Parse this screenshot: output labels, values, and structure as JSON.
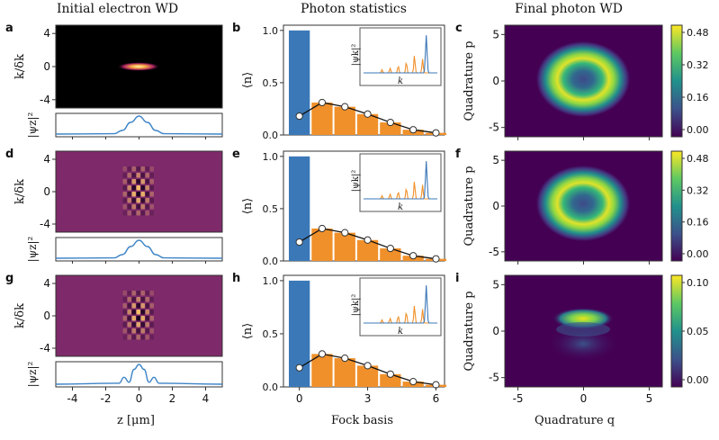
{
  "column_titles": [
    "Initial electron WD",
    "Photon statistics",
    "Final photon WD"
  ],
  "panel_labels": [
    "a",
    "b",
    "c",
    "d",
    "e",
    "f",
    "g",
    "h",
    "i"
  ],
  "x_labels": {
    "left": "z [μm]",
    "middle": "Fock basis",
    "right": "Quadrature q"
  },
  "y_labels": {
    "left_top": "k/δk",
    "left_bottom": "|ψz|²",
    "middle": "⟨n⟩",
    "middle_inset": "|ψk|²",
    "middle_inset_x": "k",
    "right": "Quadrature p"
  },
  "colors": {
    "blue": "#3b78b8",
    "orange": "#f0902a",
    "wave": "#3d84c6",
    "black_bg": "#000000",
    "magma_mid": "#7e2a6a",
    "viridis_dark": "#440154"
  },
  "chart_data": [
    {
      "type": "heatmap",
      "panel": "a",
      "xlim": [
        -5,
        5
      ],
      "ylim": [
        -5,
        5
      ],
      "yticks": [
        -4,
        0,
        4
      ],
      "pattern": "single narrow horizontal blob at origin"
    },
    {
      "type": "line",
      "panel": "a-bottom",
      "x": [
        -5,
        -1.5,
        -1,
        -0.5,
        0,
        0.5,
        1,
        1.5,
        5
      ],
      "y": [
        0,
        0.02,
        0.2,
        0.65,
        1,
        0.65,
        0.2,
        0.02,
        0
      ]
    },
    {
      "type": "bar",
      "panel": "b",
      "categories": [
        0,
        1,
        2,
        3,
        4,
        5,
        6
      ],
      "series": [
        {
          "values": [
            1.0,
            0,
            0,
            0,
            0,
            0,
            0
          ]
        },
        {
          "values": [
            0.18,
            0.31,
            0.27,
            0.2,
            0.12,
            0.05,
            0.02
          ]
        }
      ],
      "line": [
        0.18,
        0.31,
        0.27,
        0.2,
        0.12,
        0.05,
        0.02
      ],
      "ylim": [
        0,
        1.05
      ],
      "yticks": [
        0.0,
        0.5,
        1.0
      ]
    },
    {
      "type": "heatmap",
      "panel": "c",
      "xlim": [
        -6,
        6
      ],
      "ylim": [
        -6,
        6
      ],
      "yticks": [
        -5,
        0,
        5
      ],
      "colorbar_ticks": [
        "0.48",
        "0.32",
        "0.16",
        "0.00"
      ],
      "pattern": "ring"
    },
    {
      "type": "heatmap",
      "panel": "d",
      "xlim": [
        -5,
        5
      ],
      "ylim": [
        -5,
        5
      ],
      "yticks": [
        -4,
        0,
        4
      ],
      "pattern": "interference checkerboard near origin"
    },
    {
      "type": "line",
      "panel": "d-bottom",
      "x": [
        -5,
        -1.5,
        -1,
        -0.5,
        0,
        0.5,
        1,
        1.5,
        5
      ],
      "y": [
        0,
        0.02,
        0.2,
        0.65,
        1,
        0.65,
        0.2,
        0.02,
        0
      ]
    },
    {
      "type": "bar",
      "panel": "e",
      "categories": [
        0,
        1,
        2,
        3,
        4,
        5,
        6
      ],
      "series": [
        {
          "values": [
            1.0,
            0,
            0,
            0,
            0,
            0,
            0
          ]
        },
        {
          "values": [
            0.18,
            0.31,
            0.27,
            0.2,
            0.12,
            0.05,
            0.02
          ]
        }
      ],
      "line": [
        0.18,
        0.31,
        0.27,
        0.2,
        0.12,
        0.05,
        0.02
      ],
      "ylim": [
        0,
        1.05
      ],
      "yticks": [
        0.0,
        0.5,
        1.0
      ]
    },
    {
      "type": "heatmap",
      "panel": "f",
      "xlim": [
        -6,
        6
      ],
      "ylim": [
        -6,
        6
      ],
      "yticks": [
        -5,
        0,
        5
      ],
      "colorbar_ticks": [
        "0.48",
        "0.32",
        "0.16",
        "0.00"
      ],
      "pattern": "ring"
    },
    {
      "type": "heatmap",
      "panel": "g",
      "xlim": [
        -5,
        5
      ],
      "ylim": [
        -5,
        5
      ],
      "yticks": [
        -4,
        0,
        4
      ],
      "pattern": "interference checkerboard near origin"
    },
    {
      "type": "line",
      "panel": "g-bottom",
      "x": [
        -5,
        -1.2,
        -0.9,
        -0.6,
        -0.3,
        0,
        0.3,
        0.6,
        0.9,
        1.2,
        5
      ],
      "y": [
        0,
        0.05,
        0.35,
        0.1,
        0.75,
        1,
        0.75,
        0.1,
        0.35,
        0.05,
        0
      ],
      "xticks": [
        -4,
        -2,
        0,
        2,
        4
      ]
    },
    {
      "type": "bar",
      "panel": "h",
      "categories": [
        0,
        1,
        2,
        3,
        4,
        5,
        6
      ],
      "series": [
        {
          "values": [
            1.0,
            0,
            0,
            0,
            0,
            0,
            0
          ]
        },
        {
          "values": [
            0.18,
            0.31,
            0.27,
            0.2,
            0.12,
            0.05,
            0.02
          ]
        }
      ],
      "line": [
        0.18,
        0.31,
        0.27,
        0.2,
        0.12,
        0.05,
        0.02
      ],
      "ylim": [
        0,
        1.05
      ],
      "yticks": [
        0.0,
        0.5,
        1.0
      ],
      "xticks": [
        0,
        3,
        6
      ]
    },
    {
      "type": "heatmap",
      "panel": "i",
      "xlim": [
        -6,
        6
      ],
      "ylim": [
        -6,
        6
      ],
      "yticks": [
        -5,
        0,
        5
      ],
      "xticks": [
        -5,
        0,
        5
      ],
      "colorbar_ticks": [
        "0.10",
        "0.05",
        "0.00"
      ],
      "pattern": "upper arc"
    }
  ]
}
